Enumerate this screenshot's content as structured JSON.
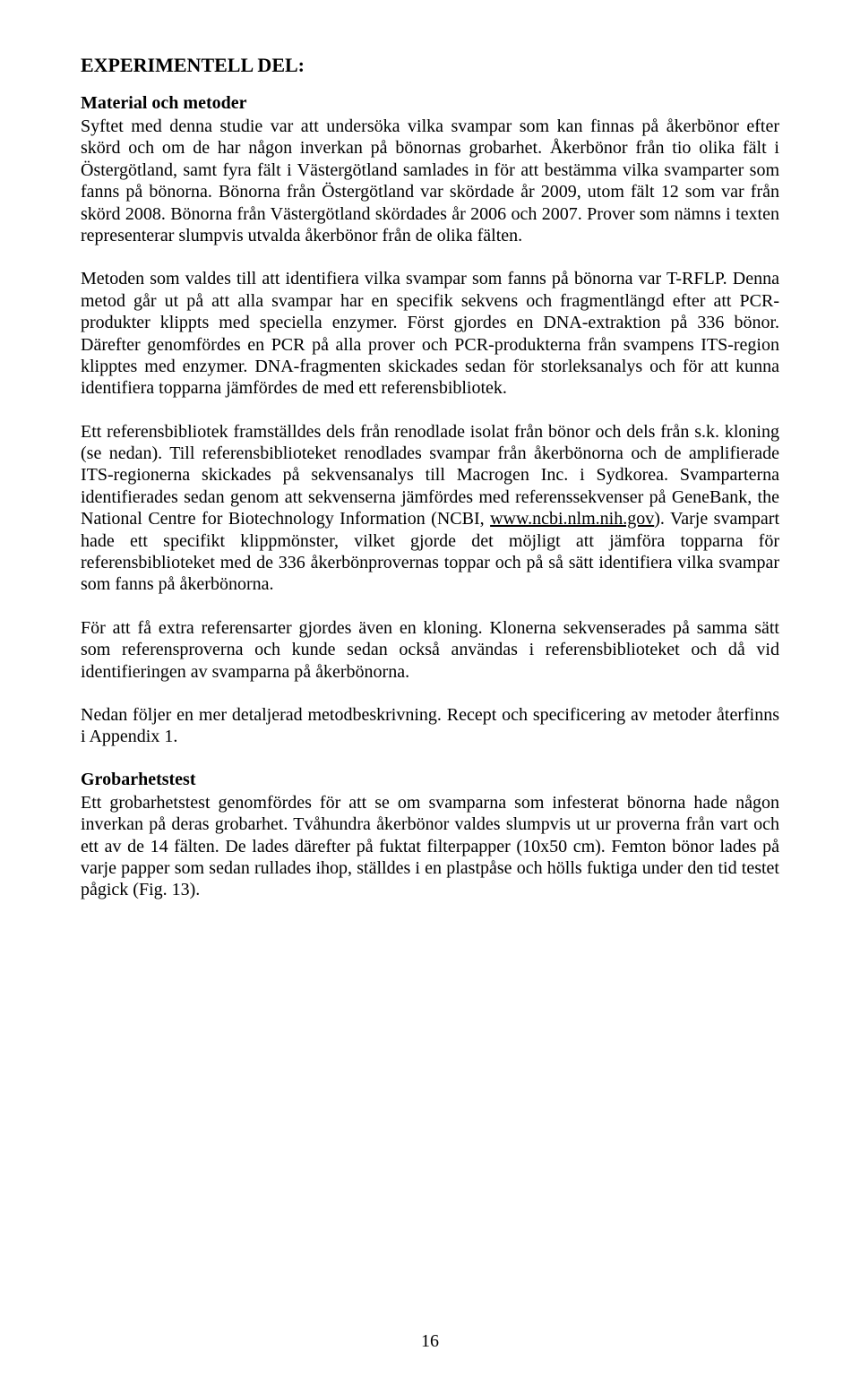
{
  "heading": "EXPERIMENTELL DEL:",
  "section1": {
    "title": "Material och metoder",
    "p1": "Syftet med denna studie var att undersöka vilka svampar som kan finnas på åkerbönor efter skörd och om de har någon inverkan på bönornas grobarhet. Åkerbönor från tio olika fält i Östergötland, samt fyra fält i Västergötland samlades in för att bestämma vilka svamparter som fanns på bönorna. Bönorna från Östergötland var skördade år 2009, utom fält 12 som var från skörd 2008. Bönorna från Västergötland skördades år 2006 och 2007. Prover som nämns i texten representerar slumpvis utvalda åkerbönor från de olika fälten.",
    "p2": "Metoden som valdes till att identifiera vilka svampar som fanns på bönorna var T-RFLP. Denna metod går ut på att alla svampar har en specifik sekvens och fragmentlängd efter att PCR-produkter klippts med speciella enzymer. Först gjordes en DNA-extraktion på 336 bönor. Därefter genomfördes en PCR på alla prover och PCR-produkterna från svampens ITS-region klipptes med enzymer. DNA-fragmenten skickades sedan för storleksanalys och för att kunna identifiera topparna jämfördes de med ett referensbibliotek.",
    "p3a": "Ett referensbibliotek framställdes dels från renodlade isolat från bönor och dels från s.k. kloning (se nedan). Till referensbiblioteket renodlades svampar från åkerbönorna och de amplifierade ITS-regionerna skickades på sekvensanalys till Macrogen Inc. i Sydkorea. Svamparterna identifierades sedan genom att sekvenserna jämfördes med referenssekvenser på GeneBank, the National Centre for Biotechnology Information (NCBI, ",
    "link": "www.ncbi.nlm.nih.gov",
    "p3b": "). Varje svampart hade ett specifikt klippmönster, vilket gjorde det möjligt att jämföra topparna för referensbiblioteket med de 336 åkerbönprovernas toppar och på så sätt identifiera vilka svampar som fanns på åkerbönorna.",
    "p4": "För att få extra referensarter gjordes även en kloning. Klonerna sekvenserades på samma sätt som referensproverna och kunde sedan också användas i referensbiblioteket och då vid identifieringen av svamparna på åkerbönorna.",
    "p5": "Nedan följer en mer detaljerad metodbeskrivning. Recept och specificering av metoder återfinns i Appendix 1."
  },
  "section2": {
    "title": "Grobarhetstest",
    "p1": "Ett grobarhetstest genomfördes för att se om svamparna som infesterat bönorna hade någon inverkan på deras grobarhet. Tvåhundra åkerbönor valdes slumpvis ut ur proverna från vart och ett av de 14 fälten. De lades därefter på fuktat filterpapper (10x50 cm). Femton bönor lades på varje papper som sedan rullades ihop, ställdes i en plastpåse och hölls fuktiga under den tid testet pågick (Fig. 13)."
  },
  "pageNumber": "16"
}
